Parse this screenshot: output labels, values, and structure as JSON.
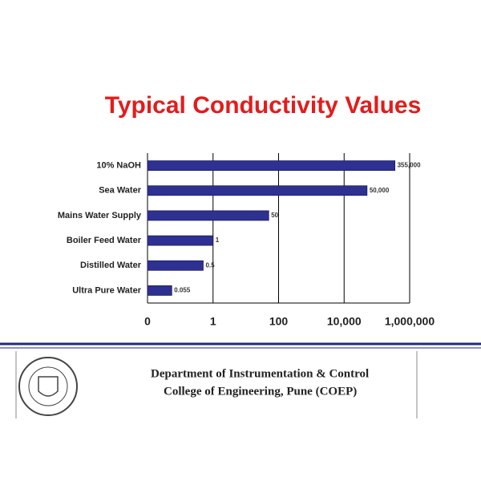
{
  "chart_data": {
    "type": "hbar",
    "title": "Typical Conductivity Values",
    "categories": [
      "10% NaOH",
      "Sea Water",
      "Mains Water Supply",
      "Boiler Feed Water",
      "Distilled Water",
      "Ultra Pure Water"
    ],
    "values": [
      355000,
      50000,
      50,
      1,
      0.5,
      0.055
    ],
    "value_labels": [
      "355,000",
      "50,000",
      "50",
      "1",
      "0.5",
      "0.055"
    ],
    "color": "#2e3192",
    "xscale": "log",
    "grid": true,
    "xlim": [
      0.01,
      1000000
    ],
    "xticks": [
      {
        "value": 0.01,
        "label": "0"
      },
      1,
      100,
      {
        "value": 10000,
        "label": "10,000"
      },
      {
        "value": 1000000,
        "label": "1,000,000"
      }
    ]
  },
  "footer": {
    "line1": "Department of Instrumentation & Control",
    "line2": "College of Engineering, Pune (COEP)"
  }
}
